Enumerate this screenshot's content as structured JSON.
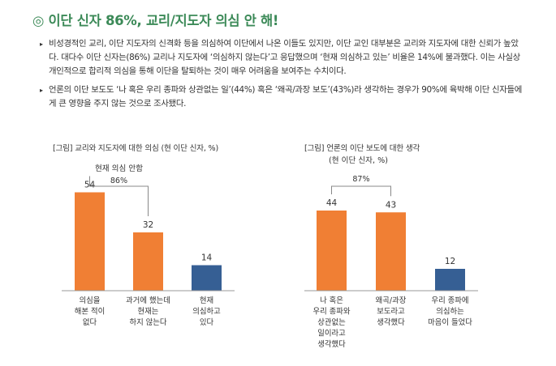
{
  "heading": "◎ 이단 신자 86%, 교리/지도자 의심 안 해!",
  "bullets": [
    "비성경적인 교리, 이단 지도자의 신격화 등을 의심하여 이단에서 나온 이들도 있지만, 이단 교인 대부분은 교리와 지도자에 대한 신뢰가 높았다. 대다수 이단 신자는(86%) 교리나 지도자에 ‘의심하지 않는다’고 응답했으며 ‘현재 의심하고 있는’ 비율은 14%에 불과했다. 이는 사실상 개인적으로 합리적 의심을 통해 이단을 탈퇴하는 것이 매우 어려움을 보여주는 수치이다.",
    "언론의 이단 보도도 ‘나 혹은 우리 종파와 상관없는 일’(44%) 혹은 ‘왜곡/과장 보도’(43%)라 생각하는 경우가 90%에 육박해 이단 신자들에게 큰 영향을 주지 않는 것으로 조사됐다."
  ],
  "chart_data": [
    {
      "type": "bar",
      "title": "[그림] 교리와 지도자에 대한 의심 (현 이단 신자, %)",
      "categories": [
        [
          "의심을",
          "해본 적이",
          "없다"
        ],
        [
          "과거에 했는데",
          "현재는",
          "하지 않는다"
        ],
        [
          "현재",
          "의심하고",
          "있다"
        ]
      ],
      "values": [
        54,
        32,
        14
      ],
      "value_labels": [
        "54",
        "32",
        "14"
      ],
      "colors": [
        "#f07f34",
        "#f07f34",
        "#365f94"
      ],
      "bracket": {
        "label_top": "현재 의심 안함",
        "label": "86%",
        "spans": [
          0,
          1
        ]
      },
      "ylim": [
        0,
        60
      ]
    },
    {
      "type": "bar",
      "title": "[그림] 언론의 이단 보도에 대한 생각",
      "subtitle": "(현 이단 신자, %)",
      "categories": [
        [
          "나 혹은",
          "우리 종파와",
          "상관없는",
          "일이라고",
          "생각했다"
        ],
        [
          "왜곡/과장",
          "보도라고",
          "생각했다"
        ],
        [
          "우리 종파에",
          "의심하는",
          "마음이 들었다"
        ]
      ],
      "values": [
        44,
        43,
        12
      ],
      "value_labels": [
        "44",
        "43",
        "12"
      ],
      "colors": [
        "#f07f34",
        "#f07f34",
        "#365f94"
      ],
      "bracket": {
        "label_top": "",
        "label": "87%",
        "spans": [
          0,
          1
        ]
      },
      "ylim": [
        0,
        60
      ]
    }
  ]
}
